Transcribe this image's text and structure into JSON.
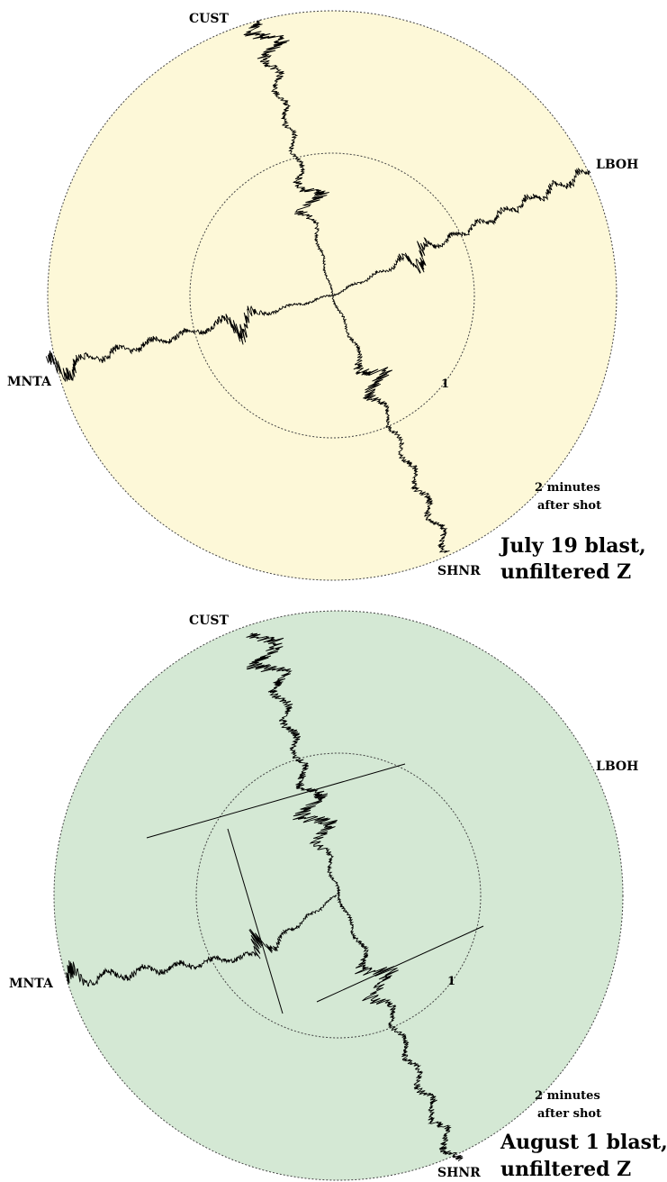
{
  "panels": [
    {
      "id": "july",
      "fill": "#fdf8d8",
      "title_line1": "July 19 blast,",
      "title_line2": "unfiltered Z",
      "stations": {
        "north": "CUST",
        "east": "LBOH",
        "west": "MNTA",
        "south": "SHNR"
      },
      "inner_ring_label": "1",
      "outer_ring_label_line1": "2 minutes",
      "outer_ring_label_line2": "after shot"
    },
    {
      "id": "august",
      "fill": "#d4e8d4",
      "title_line1": "August 1 blast,",
      "title_line2": "unfiltered Z",
      "stations": {
        "north": "CUST",
        "east": "LBOH",
        "west": "MNTA",
        "south": "SHNR"
      },
      "inner_ring_label": "1",
      "outer_ring_label_line1": "2 minutes",
      "outer_ring_label_line2": "after shot"
    }
  ],
  "colors": {
    "trace": "#000000",
    "ring": "#444444"
  }
}
